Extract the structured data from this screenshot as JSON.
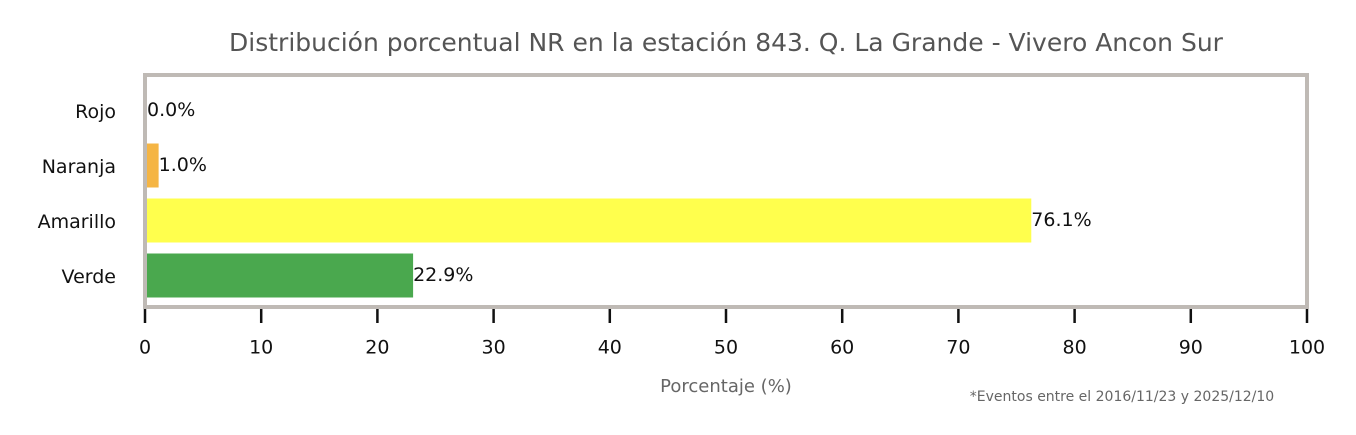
{
  "chart_data": {
    "type": "barh",
    "title": "Distribución porcentual NR en la estación 843. Q. La Grande - Vivero Ancon Sur",
    "categories": [
      "Rojo",
      "Naranja",
      "Amarillo",
      "Verde"
    ],
    "values": [
      0.0,
      1.0,
      76.1,
      22.9
    ],
    "value_labels": [
      "0.0%",
      "1.0%",
      "76.1%",
      "22.9%"
    ],
    "colors": [
      "#e03c31",
      "#f5b544",
      "#ffff4d",
      "#4aa84e"
    ],
    "xlabel": "Porcentaje (%)",
    "xlim": [
      0,
      100
    ],
    "xticks": [
      0,
      10,
      20,
      30,
      40,
      50,
      60,
      70,
      80,
      90,
      100
    ],
    "grid": false,
    "annotation": "*Eventos entre el 2016/11/23 y 2025/12/10"
  }
}
